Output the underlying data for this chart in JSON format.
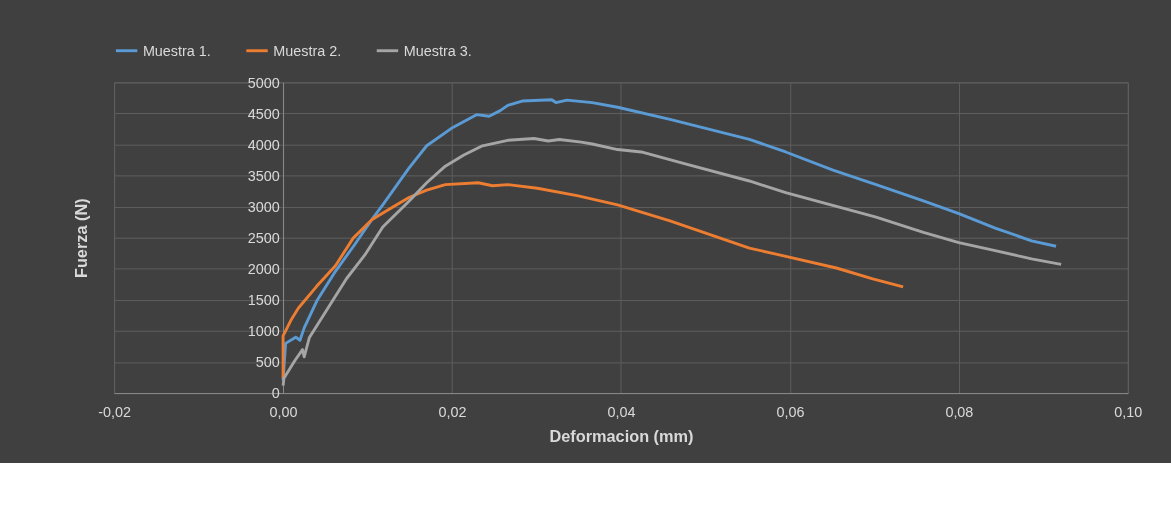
{
  "chart_data": {
    "type": "line",
    "xlabel": "Deformacion (mm)",
    "ylabel": "Fuerza (N)",
    "xlim": [
      -0.02,
      0.1
    ],
    "ylim": [
      0,
      5000
    ],
    "xticks": [
      {
        "value": -0.02,
        "label": "-0,02"
      },
      {
        "value": 0,
        "label": "0,00"
      },
      {
        "value": 0.02,
        "label": "0,02"
      },
      {
        "value": 0.04,
        "label": "0,04"
      },
      {
        "value": 0.06,
        "label": "0,06"
      },
      {
        "value": 0.08,
        "label": "0,08"
      },
      {
        "value": 0.1,
        "label": "0,10"
      }
    ],
    "yticks": [
      0,
      500,
      1000,
      1500,
      2000,
      2500,
      3000,
      3500,
      4000,
      4500,
      5000
    ],
    "grid": true,
    "legend": "top",
    "line_style": "solid",
    "marker": "none",
    "series": [
      {
        "name": "Muestra 1.",
        "color": "#5b9bd5",
        "x": [
          0,
          0.0003,
          0.0015,
          0.002,
          0.0025,
          0.004,
          0.0062,
          0.0084,
          0.0105,
          0.0118,
          0.0149,
          0.017,
          0.0201,
          0.0229,
          0.0244,
          0.0257,
          0.0266,
          0.0283,
          0.0318,
          0.0323,
          0.0336,
          0.0366,
          0.0396,
          0.0458,
          0.0552,
          0.0595,
          0.0651,
          0.0702,
          0.0758,
          0.08,
          0.0843,
          0.0886,
          0.0915
        ],
        "values": [
          200,
          800,
          900,
          850,
          1050,
          1485,
          1960,
          2375,
          2790,
          3030,
          3620,
          3980,
          4275,
          4480,
          4455,
          4545,
          4630,
          4700,
          4720,
          4675,
          4715,
          4675,
          4600,
          4405,
          4084,
          3880,
          3588,
          3355,
          3092,
          2888,
          2655,
          2450,
          2363
        ]
      },
      {
        "name": "Muestra 2.",
        "color": "#ed7d31",
        "x": [
          0,
          0,
          0.001,
          0.0018,
          0.004,
          0.0062,
          0.0083,
          0.0105,
          0.0127,
          0.0149,
          0.017,
          0.0192,
          0.0231,
          0.0248,
          0.0266,
          0.0301,
          0.0348,
          0.0396,
          0.0458,
          0.0552,
          0.0599,
          0.0655,
          0.0698,
          0.0734
        ],
        "values": [
          240,
          920,
          1190,
          1366,
          1722,
          2050,
          2494,
          2790,
          2970,
          3147,
          3266,
          3355,
          3385,
          3337,
          3355,
          3296,
          3177,
          3029,
          2771,
          2334,
          2188,
          2013,
          1838,
          1709
        ]
      },
      {
        "name": "Muestra 3.",
        "color": "#a5a5a5",
        "x": [
          0,
          0.0001,
          0.0014,
          0.0023,
          0.0025,
          0.0031,
          0.0053,
          0.0075,
          0.0097,
          0.0118,
          0.0149,
          0.017,
          0.0192,
          0.0214,
          0.0236,
          0.0266,
          0.0297,
          0.0314,
          0.0327,
          0.0353,
          0.0366,
          0.0396,
          0.0424,
          0.0475,
          0.0552,
          0.0595,
          0.0655,
          0.0702,
          0.0758,
          0.08,
          0.0843,
          0.0886,
          0.0921
        ],
        "values": [
          120,
          240,
          525,
          700,
          584,
          890,
          1366,
          1840,
          2227,
          2672,
          3088,
          3385,
          3652,
          3830,
          3979,
          4068,
          4097,
          4056,
          4080,
          4038,
          4008,
          3919,
          3880,
          3693,
          3413,
          3227,
          3005,
          2830,
          2585,
          2421,
          2293,
          2159,
          2071
        ]
      }
    ]
  }
}
